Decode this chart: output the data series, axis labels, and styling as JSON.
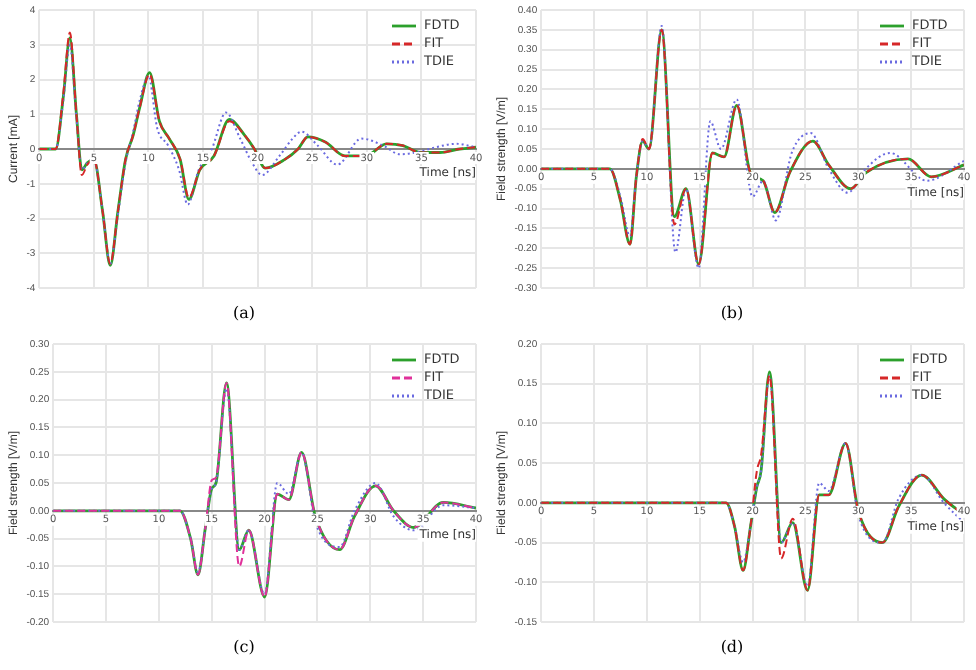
{
  "chart_data": [
    {
      "type": "line",
      "xlabel": "Time [ns]",
      "ylabel": "Current [mA]",
      "annotations": [
        "(a)"
      ],
      "xlim": [
        0,
        40
      ],
      "ylim": [
        -4,
        4
      ],
      "xticks": [
        0,
        5,
        10,
        15,
        20,
        25,
        30,
        35,
        40
      ],
      "yticks": [
        -4,
        -3,
        -2,
        -1,
        0,
        1,
        2,
        3,
        4
      ],
      "grid": true,
      "legend": "top right",
      "marker": "none",
      "series": [
        {
          "name": "FDTD",
          "color": "#2ca02c",
          "line_style": "solid",
          "x": [
            0,
            1.5,
            2.2,
            2.8,
            3.4,
            3.9,
            4.4,
            5.0,
            5.8,
            6.5,
            7.2,
            7.9,
            8.6,
            9.2,
            10.1,
            11.0,
            11.9,
            12.9,
            13.7,
            14.7,
            16.0,
            17.4,
            18.8,
            19.7,
            20.7,
            22.5,
            23.7,
            24.6,
            26.2,
            28.0,
            29.9,
            31.8,
            33.3,
            34.9,
            36.7,
            38.5,
            40
          ],
          "values": [
            0,
            0,
            1.5,
            3.2,
            1.0,
            -0.6,
            -0.4,
            -0.3,
            -1.8,
            -3.35,
            -1.8,
            -0.3,
            0.4,
            1.2,
            2.2,
            0.8,
            0.3,
            -0.3,
            -1.45,
            -0.6,
            -0.2,
            0.85,
            0.4,
            0,
            -0.55,
            -0.3,
            0,
            0.35,
            0.2,
            -0.2,
            -0.2,
            0.15,
            0.1,
            -0.1,
            -0.1,
            0,
            0.05
          ]
        },
        {
          "name": "FIT",
          "color": "#d62728",
          "line_style": "dashed",
          "x": [
            0,
            1.5,
            2.2,
            2.8,
            3.4,
            3.9,
            4.4,
            5.0,
            5.8,
            6.5,
            7.2,
            7.9,
            8.6,
            9.2,
            10.1,
            11.0,
            11.9,
            12.9,
            13.7,
            14.7,
            16.0,
            17.4,
            18.8,
            19.7,
            20.7,
            22.5,
            23.7,
            24.6,
            26.2,
            28.0,
            29.9,
            31.8,
            33.3,
            34.9,
            36.7,
            38.5,
            40
          ],
          "values": [
            0,
            0,
            1.6,
            3.35,
            1.0,
            -0.75,
            -0.45,
            -0.3,
            -1.8,
            -3.3,
            -1.8,
            -0.3,
            0.4,
            1.2,
            2.15,
            0.8,
            0.3,
            -0.3,
            -1.4,
            -0.6,
            -0.2,
            0.8,
            0.4,
            0,
            -0.55,
            -0.3,
            0,
            0.35,
            0.2,
            -0.2,
            -0.2,
            0.15,
            0.1,
            -0.1,
            -0.1,
            0,
            0.05
          ]
        },
        {
          "name": "TDIE",
          "color": "#6a6ae0",
          "line_style": "dotted",
          "x": [
            0,
            1.5,
            2.2,
            2.8,
            3.4,
            3.9,
            4.4,
            5.0,
            5.8,
            6.5,
            7.2,
            7.9,
            8.6,
            9.2,
            10.0,
            10.8,
            11.8,
            12.8,
            13.6,
            14.6,
            15.8,
            17.1,
            18.4,
            19.5,
            20.4,
            22.0,
            23.2,
            24.0,
            25.5,
            27.3,
            29.5,
            31.5,
            33.0,
            34.5,
            36.3,
            38.2,
            40
          ],
          "values": [
            0,
            0,
            1.4,
            3.0,
            0.9,
            -0.6,
            -0.4,
            -0.3,
            -1.8,
            -3.3,
            -1.9,
            -0.4,
            0.5,
            1.4,
            2.1,
            0.6,
            0.1,
            -0.6,
            -1.6,
            -0.6,
            0,
            1.05,
            0.3,
            -0.4,
            -0.75,
            -0.2,
            0.3,
            0.5,
            0.1,
            -0.45,
            0.3,
            0.1,
            -0.15,
            -0.1,
            0.05,
            0.15,
            0.05
          ]
        }
      ]
    },
    {
      "type": "line",
      "xlabel": "Time [ns]",
      "ylabel": "Field strength [V/m]",
      "annotations": [
        "(b)"
      ],
      "xlim": [
        0,
        40
      ],
      "ylim": [
        -0.3,
        0.4
      ],
      "xticks": [
        0,
        5,
        10,
        15,
        20,
        25,
        30,
        35,
        40
      ],
      "yticks": [
        {
          "value": -0.3,
          "label": "-0.30"
        },
        {
          "value": -0.25,
          "label": "-0.25"
        },
        {
          "value": -0.2,
          "label": "-0.20"
        },
        {
          "value": -0.15,
          "label": "-0.15"
        },
        {
          "value": -0.1,
          "label": "-0.10"
        },
        {
          "value": -0.05,
          "label": "-0.05"
        },
        {
          "value": 0,
          "label": "0.00"
        },
        {
          "value": 0.05,
          "label": "0.05"
        },
        {
          "value": 0.1,
          "label": "0.10"
        },
        {
          "value": 0.15,
          "label": "0.15"
        },
        {
          "value": 0.2,
          "label": "0.20"
        },
        {
          "value": 0.25,
          "label": "0.25"
        },
        {
          "value": 0.3,
          "label": "0.30"
        },
        {
          "value": 0.35,
          "label": "0.35"
        },
        {
          "value": 0.4,
          "label": "0.40"
        }
      ],
      "grid": true,
      "legend": "top right",
      "marker": "none",
      "series": [
        {
          "name": "FDTD",
          "color": "#2ca02c",
          "line_style": "solid",
          "x": [
            0,
            6.5,
            7.5,
            8.4,
            9.0,
            9.6,
            10.2,
            11.4,
            12.6,
            13.7,
            14.9,
            16.2,
            17.3,
            18.5,
            19.8,
            21.0,
            22.1,
            23.5,
            25.7,
            27.2,
            29.3,
            30.7,
            34.7,
            36.9,
            40
          ],
          "values": [
            0,
            0,
            -0.08,
            -0.19,
            -0.02,
            0.07,
            0.05,
            0.35,
            -0.12,
            -0.05,
            -0.24,
            0.04,
            0.03,
            0.16,
            -0.01,
            -0.03,
            -0.11,
            -0.01,
            0.07,
            0.01,
            -0.05,
            -0.01,
            0.025,
            -0.02,
            0.01
          ]
        },
        {
          "name": "FIT",
          "color": "#d62728",
          "line_style": "dashed",
          "x": [
            0,
            6.5,
            7.5,
            8.4,
            9.0,
            9.6,
            10.2,
            11.4,
            12.6,
            13.7,
            14.9,
            16.2,
            17.3,
            18.5,
            19.8,
            21.0,
            22.1,
            23.5,
            25.7,
            27.2,
            29.3,
            30.7,
            34.7,
            36.9,
            40
          ],
          "values": [
            0,
            0,
            -0.08,
            -0.19,
            -0.02,
            0.075,
            0.05,
            0.35,
            -0.14,
            -0.05,
            -0.24,
            0.04,
            0.03,
            0.16,
            -0.01,
            -0.03,
            -0.11,
            -0.01,
            0.07,
            0.01,
            -0.05,
            -0.01,
            0.025,
            -0.02,
            0.01
          ]
        },
        {
          "name": "TDIE",
          "color": "#6a6ae0",
          "line_style": "dotted",
          "x": [
            0,
            6.5,
            7.5,
            8.4,
            9.0,
            9.6,
            10.2,
            11.4,
            12.7,
            13.7,
            14.9,
            16.0,
            17.0,
            18.5,
            20.0,
            21.0,
            22.2,
            23.7,
            25.5,
            27.2,
            29.0,
            30.7,
            33.0,
            36.5,
            40
          ],
          "values": [
            0,
            0,
            -0.07,
            -0.17,
            -0.02,
            0.07,
            0.05,
            0.36,
            -0.21,
            -0.05,
            -0.25,
            0.12,
            0.05,
            0.175,
            -0.07,
            -0.03,
            -0.13,
            0.04,
            0.09,
            0.0,
            -0.06,
            0.0,
            0.04,
            -0.03,
            0.02
          ]
        }
      ]
    },
    {
      "type": "line",
      "xlabel": "Time [ns]",
      "ylabel": "Field strength [V/m]",
      "annotations": [
        "(c)"
      ],
      "xlim": [
        0,
        40
      ],
      "ylim": [
        -0.2,
        0.3
      ],
      "xticks": [
        0,
        5,
        10,
        15,
        20,
        25,
        30,
        35,
        40
      ],
      "yticks": [
        {
          "value": -0.2,
          "label": "-0.20"
        },
        {
          "value": -0.15,
          "label": "-0.15"
        },
        {
          "value": -0.1,
          "label": "-0.10"
        },
        {
          "value": -0.05,
          "label": "-0.05"
        },
        {
          "value": 0,
          "label": "0.00"
        },
        {
          "value": 0.05,
          "label": "0.05"
        },
        {
          "value": 0.1,
          "label": "0.10"
        },
        {
          "value": 0.15,
          "label": "0.15"
        },
        {
          "value": 0.2,
          "label": "0.20"
        },
        {
          "value": 0.25,
          "label": "0.25"
        },
        {
          "value": 0.3,
          "label": "0.30"
        }
      ],
      "grid": true,
      "legend": "top right",
      "marker": "none",
      "series": [
        {
          "name": "FDTD",
          "color": "#2ca02c",
          "line_style": "solid",
          "x": [
            0,
            12,
            13,
            13.7,
            14.4,
            15.0,
            15.4,
            16.4,
            17.6,
            18.5,
            20.0,
            21.2,
            22.3,
            23.5,
            24.8,
            27.1,
            28.5,
            30.5,
            32.2,
            34.1,
            36.9,
            40
          ],
          "values": [
            0,
            0,
            -0.05,
            -0.115,
            -0.03,
            0.04,
            0.05,
            0.23,
            -0.07,
            -0.035,
            -0.155,
            0.03,
            0.02,
            0.105,
            -0.01,
            -0.07,
            -0.01,
            0.045,
            0.0,
            -0.03,
            0.015,
            0.005
          ]
        },
        {
          "name": "FIT",
          "color": "#e0309a",
          "line_style": "dashed",
          "x": [
            0,
            12,
            13,
            13.7,
            14.4,
            15.0,
            15.4,
            16.4,
            17.6,
            18.5,
            20.0,
            21.2,
            22.3,
            23.5,
            24.8,
            27.1,
            28.5,
            30.5,
            32.2,
            34.1,
            36.9,
            40
          ],
          "values": [
            0,
            0,
            -0.05,
            -0.115,
            -0.03,
            0.055,
            0.06,
            0.23,
            -0.1,
            -0.035,
            -0.155,
            0.03,
            0.02,
            0.105,
            -0.01,
            -0.07,
            -0.01,
            0.045,
            0.0,
            -0.03,
            0.015,
            0.005
          ]
        },
        {
          "name": "TDIE",
          "color": "#6a6ae0",
          "line_style": "dotted",
          "x": [
            0,
            12,
            13,
            13.7,
            14.4,
            15.0,
            15.4,
            16.4,
            17.6,
            18.5,
            20.0,
            21.2,
            22.3,
            23.5,
            24.8,
            27.1,
            28.5,
            30.5,
            32.2,
            34.1,
            36.9,
            40
          ],
          "values": [
            0,
            0,
            -0.05,
            -0.11,
            -0.03,
            0.04,
            0.05,
            0.22,
            -0.07,
            -0.035,
            -0.15,
            0.05,
            0.03,
            0.105,
            -0.02,
            -0.065,
            0.0,
            0.05,
            -0.01,
            -0.035,
            0.01,
            0.005
          ]
        }
      ]
    },
    {
      "type": "line",
      "xlabel": "Time [ns]",
      "ylabel": "Field strength [V/m]",
      "annotations": [
        "(d)"
      ],
      "xlim": [
        0,
        40
      ],
      "ylim": [
        -0.15,
        0.2
      ],
      "xticks": [
        0,
        5,
        10,
        15,
        20,
        25,
        30,
        35,
        40
      ],
      "yticks": [
        {
          "value": -0.15,
          "label": "-0.15"
        },
        {
          "value": -0.1,
          "label": "-0.10"
        },
        {
          "value": -0.05,
          "label": "-0.05"
        },
        {
          "value": 0,
          "label": "0.00"
        },
        {
          "value": 0.05,
          "label": "0.05"
        },
        {
          "value": 0.1,
          "label": "0.10"
        },
        {
          "value": 0.15,
          "label": "0.15"
        },
        {
          "value": 0.2,
          "label": "0.20"
        }
      ],
      "grid": true,
      "legend": "top right",
      "marker": "none",
      "series": [
        {
          "name": "FDTD",
          "color": "#2ca02c",
          "line_style": "solid",
          "x": [
            0,
            17.5,
            18.3,
            19.1,
            19.8,
            20.4,
            20.8,
            21.6,
            22.7,
            23.8,
            25.2,
            26.3,
            27.2,
            28.8,
            30.0,
            32.3,
            33.8,
            36.0,
            38.1,
            40
          ],
          "values": [
            0,
            0,
            -0.03,
            -0.085,
            -0.03,
            0.02,
            0.04,
            0.165,
            -0.05,
            -0.025,
            -0.11,
            0.01,
            0.01,
            0.075,
            -0.01,
            -0.05,
            -0.005,
            0.035,
            0.005,
            -0.015
          ]
        },
        {
          "name": "FIT",
          "color": "#d62728",
          "line_style": "dashed",
          "x": [
            0,
            17.5,
            18.3,
            19.1,
            19.8,
            20.4,
            20.8,
            21.6,
            22.7,
            23.8,
            25.2,
            26.3,
            27.2,
            28.8,
            30.0,
            32.3,
            33.8,
            36.0,
            38.1,
            40
          ],
          "values": [
            0,
            0,
            -0.03,
            -0.085,
            -0.03,
            0.04,
            0.06,
            0.16,
            -0.07,
            -0.02,
            -0.11,
            0.01,
            0.01,
            0.075,
            -0.01,
            -0.05,
            -0.005,
            0.035,
            0.005,
            -0.015
          ]
        },
        {
          "name": "TDIE",
          "color": "#6a6ae0",
          "line_style": "dotted",
          "x": [
            0,
            17.5,
            18.3,
            19.1,
            19.8,
            20.4,
            20.8,
            21.6,
            22.7,
            23.8,
            25.2,
            26.3,
            27.2,
            28.8,
            30.0,
            32.3,
            33.8,
            36.0,
            38.1,
            40
          ],
          "values": [
            0,
            0,
            -0.03,
            -0.075,
            -0.03,
            0.02,
            0.04,
            0.16,
            -0.05,
            -0.025,
            -0.105,
            0.025,
            0.015,
            0.075,
            -0.015,
            -0.05,
            0.005,
            0.035,
            0.0,
            -0.025
          ]
        }
      ]
    }
  ]
}
